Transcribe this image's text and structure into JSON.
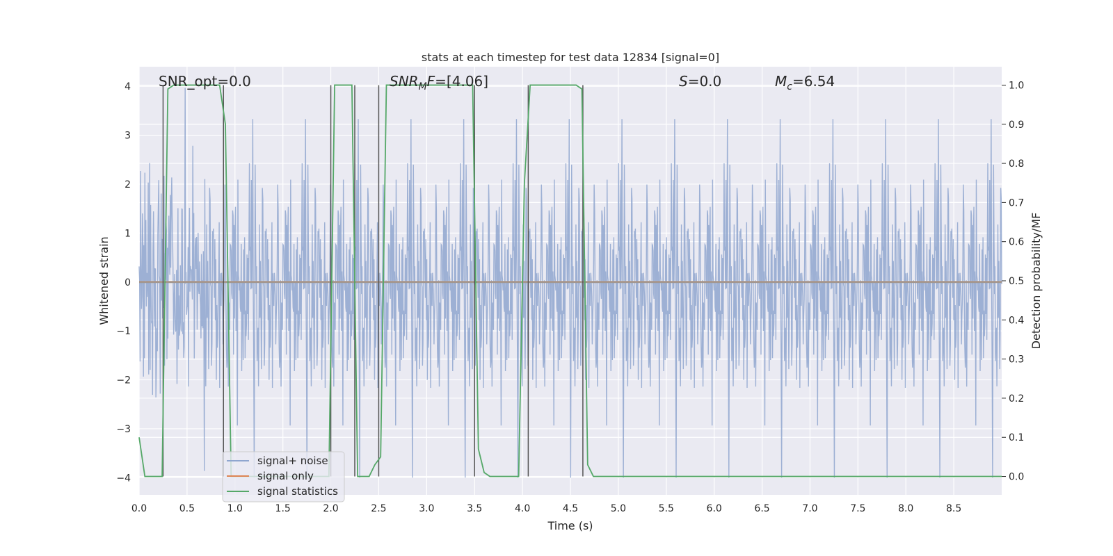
{
  "chart_data": {
    "type": "line",
    "title": "stats at each timestep for test data 12834 [signal=0]",
    "xlabel": "Time (s)",
    "ylabel": "Whitened strain",
    "y2label": "Detection probability/MF",
    "xlim": [
      0,
      9.0
    ],
    "ylim": [
      -4.35,
      4.4
    ],
    "y2lim": [
      -0.047,
      1.047
    ],
    "x_ticks": [
      0.0,
      0.5,
      1.0,
      1.5,
      2.0,
      2.5,
      3.0,
      3.5,
      4.0,
      4.5,
      5.0,
      5.5,
      6.0,
      6.5,
      7.0,
      7.5,
      8.0,
      8.5
    ],
    "x_tick_labels": [
      "0.0",
      "0.5",
      "1.0",
      "1.5",
      "2.0",
      "2.5",
      "3.0",
      "3.5",
      "4.0",
      "4.5",
      "5.0",
      "5.5",
      "6.0",
      "6.5",
      "7.0",
      "7.5",
      "8.0",
      "8.5"
    ],
    "y_ticks": [
      4,
      3,
      2,
      1,
      0,
      -1,
      -2,
      -3,
      -4
    ],
    "y_tick_labels": [
      "4",
      "3",
      "2",
      "1",
      "0",
      "−1",
      "−2",
      "−3",
      "−4"
    ],
    "y2_ticks": [
      1.0,
      0.9,
      0.8,
      0.7,
      0.6,
      0.5,
      0.4,
      0.3,
      0.2,
      0.1,
      0.0
    ],
    "y2_tick_labels": [
      "1.0",
      "0.9",
      "0.8",
      "0.7",
      "0.6",
      "0.5",
      "0.4",
      "0.3",
      "0.2",
      "0.1",
      "0.0"
    ],
    "grid": true,
    "legend_position": "lower-left",
    "legend": [
      "signal+ noise",
      "signal only",
      "signal statistics"
    ],
    "annotations": {
      "snr_opt": "SNR_opt=0.0",
      "snr_mf_italic": "SNR",
      "snr_mf_sub": "M",
      "snr_mf_italic2": "F",
      "snr_mf_value": "=[4.06]",
      "s_italic": "S",
      "s_value": "=0.0",
      "mc_italic": "M",
      "mc_sub": "c",
      "mc_value": "=6.54"
    },
    "series": [
      {
        "name": "signal+ noise",
        "color": "#8fa6cf",
        "description_values": "dense gaussian-like whitened noise, amplitude approx ±2.5 typical, peaks to ±4",
        "noise_seed": 12834,
        "n_samples": 1800
      },
      {
        "name": "signal only",
        "color": "#dd8452",
        "x": [
          0.0,
          9.0
        ],
        "y": [
          0.0,
          0.0
        ]
      },
      {
        "name": "signal statistics",
        "color": "#55a868",
        "x": [
          0.0,
          0.06,
          0.12,
          0.18,
          0.24,
          0.3,
          0.36,
          0.42,
          0.48,
          0.54,
          0.6,
          0.66,
          0.72,
          0.78,
          0.84,
          0.9,
          0.96,
          1.02,
          1.08,
          1.14,
          1.2,
          1.26,
          1.32,
          1.38,
          1.44,
          1.5,
          1.56,
          1.62,
          1.68,
          1.74,
          1.8,
          1.86,
          1.92,
          1.98,
          2.04,
          2.1,
          2.16,
          2.22,
          2.28,
          2.34,
          2.4,
          2.46,
          2.52,
          2.58,
          2.64,
          2.7,
          2.76,
          2.82,
          2.88,
          2.94,
          3.0,
          3.06,
          3.12,
          3.18,
          3.24,
          3.3,
          3.36,
          3.42,
          3.48,
          3.54,
          3.6,
          3.66,
          3.72,
          3.78,
          3.84,
          3.9,
          3.96,
          4.02,
          4.08,
          4.14,
          4.2,
          4.26,
          4.32,
          4.38,
          4.44,
          4.5,
          4.56,
          4.62,
          4.68,
          4.74,
          4.8,
          9.0
        ],
        "y": [
          0.1,
          0.0,
          0.0,
          0.0,
          0.0,
          0.99,
          1.0,
          1.0,
          1.0,
          1.0,
          1.0,
          1.0,
          1.0,
          1.0,
          1.0,
          0.9,
          0.0,
          0.0,
          0.0,
          0.0,
          0.0,
          0.0,
          0.0,
          0.0,
          0.0,
          0.0,
          0.0,
          0.0,
          0.0,
          0.0,
          0.0,
          0.0,
          0.0,
          0.0,
          1.0,
          1.0,
          1.0,
          1.0,
          0.0,
          0.0,
          0.0,
          0.03,
          0.05,
          1.0,
          1.0,
          1.0,
          1.0,
          1.0,
          1.0,
          1.0,
          1.0,
          1.0,
          1.0,
          1.0,
          1.0,
          1.0,
          1.0,
          1.0,
          1.0,
          0.07,
          0.01,
          0.0,
          0.0,
          0.0,
          0.0,
          0.0,
          0.0,
          0.75,
          1.0,
          1.0,
          1.0,
          1.0,
          1.0,
          1.0,
          1.0,
          1.0,
          1.0,
          0.99,
          0.03,
          0.0,
          0.0,
          0.0
        ]
      }
    ],
    "vertical_lines_x": [
      0.25,
      0.88,
      2.0,
      2.25,
      2.5,
      3.5,
      4.06,
      4.63
    ],
    "vertical_line_color": "#555555"
  }
}
